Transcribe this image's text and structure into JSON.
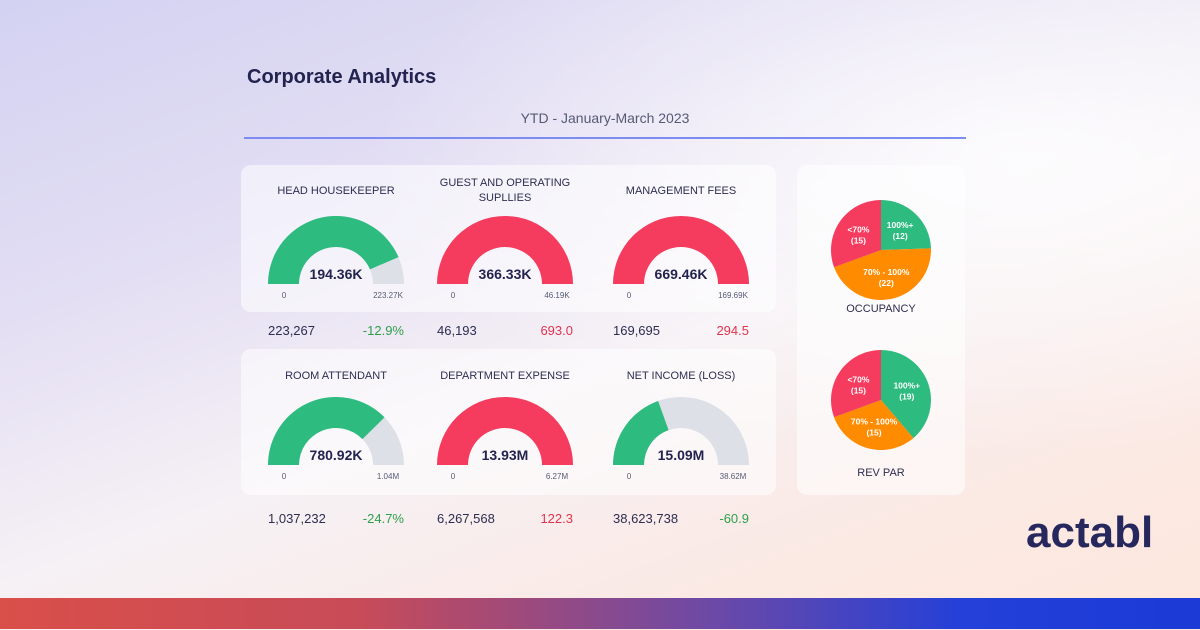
{
  "header": {
    "title": "Corporate Analytics",
    "period": "YTD - January-March 2023"
  },
  "colors": {
    "good": "#2dbb7f",
    "bad": "#f53b5e",
    "track": "#dde0e6",
    "mid": "#ff8c00"
  },
  "gauges": [
    {
      "title": "HEAD HOUSEKEEPER",
      "value": 194.36,
      "value_label": "194.36K",
      "min_label": "0",
      "max": 223.27,
      "max_label": "223.27K",
      "status": "good",
      "target": "223,267",
      "variance": "-12.9%",
      "variance_status": "good"
    },
    {
      "title": "GUEST AND OPERATING SUPLLIES",
      "value": 366.33,
      "value_label": "366.33K",
      "min_label": "0",
      "max": 46.19,
      "max_label": "46.19K",
      "status": "bad",
      "target": "46,193",
      "variance": "693.0",
      "variance_status": "bad"
    },
    {
      "title": "MANAGEMENT FEES",
      "value": 669.46,
      "value_label": "669.46K",
      "min_label": "0",
      "max": 169.69,
      "max_label": "169.69K",
      "status": "bad",
      "target": "169,695",
      "variance": "294.5",
      "variance_status": "bad"
    },
    {
      "title": "ROOM ATTENDANT",
      "value": 780.92,
      "value_label": "780.92K",
      "min_label": "0",
      "max": 1037.232,
      "max_label": "1.04M",
      "status": "good",
      "target": "1,037,232",
      "variance": "-24.7%",
      "variance_status": "good"
    },
    {
      "title": "DEPARTMENT EXPENSE",
      "value": 13.93,
      "value_label": "13.93M",
      "min_label": "0",
      "max": 6.27,
      "max_label": "6.27M",
      "status": "bad",
      "target": "6,267,568",
      "variance": "122.3",
      "variance_status": "bad"
    },
    {
      "title": "NET INCOME (LOSS)",
      "value": 15.09,
      "value_label": "15.09M",
      "min_label": "0",
      "max": 38.62,
      "max_label": "38.62M",
      "status": "good",
      "target": "38,623,738",
      "variance": "-60.9",
      "variance_status": "good"
    }
  ],
  "chart_data": [
    {
      "type": "pie",
      "title": "OCCUPANCY",
      "slices": [
        {
          "label": "100%+",
          "value": 12,
          "color": "#2dbb7f"
        },
        {
          "label": "70% - 100%",
          "value": 22,
          "color": "#ff8c00"
        },
        {
          "label": "<70%",
          "value": 15,
          "color": "#f53b5e"
        }
      ]
    },
    {
      "type": "pie",
      "title": "REV PAR",
      "slices": [
        {
          "label": "100%+",
          "value": 19,
          "color": "#2dbb7f"
        },
        {
          "label": "70% - 100%",
          "value": 15,
          "color": "#ff8c00"
        },
        {
          "label": "<70%",
          "value": 15,
          "color": "#f53b5e"
        }
      ]
    }
  ],
  "brand": {
    "logo": "actabl"
  }
}
